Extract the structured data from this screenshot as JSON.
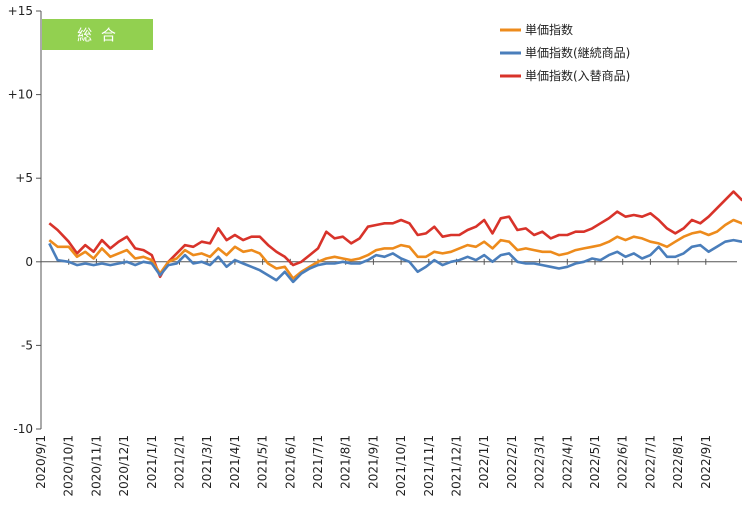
{
  "badge": {
    "label": "総 合"
  },
  "chart_data": {
    "type": "line",
    "title": "",
    "xlabel": "",
    "ylabel": "",
    "ylim": [
      -10,
      15
    ],
    "y_ticks": [
      {
        "value": 15,
        "label": "+15"
      },
      {
        "value": 10,
        "label": "+10"
      },
      {
        "value": 5,
        "label": "+5"
      },
      {
        "value": 0,
        "label": "0"
      },
      {
        "value": -5,
        "label": "-5"
      },
      {
        "value": -10,
        "label": "-10"
      }
    ],
    "x_tick_labels": [
      "2020/9/1",
      "2020/10/1",
      "2020/11/1",
      "2020/12/1",
      "2021/1/1",
      "2021/2/1",
      "2021/3/1",
      "2021/4/1",
      "2021/5/1",
      "2021/6/1",
      "2021/7/1",
      "2021/8/1",
      "2021/9/1",
      "2021/10/1",
      "2021/11/1",
      "2021/12/1",
      "2022/1/1",
      "2022/2/1",
      "2022/3/1",
      "2022/4/1",
      "2022/5/1",
      "2022/6/1",
      "2022/7/1",
      "2022/8/1",
      "2022/9/1"
    ],
    "grid": false,
    "legend_position": "top-right",
    "series": [
      {
        "name": "単価指数",
        "color": "#ed8b1c",
        "points": [
          [
            0.3,
            1.3
          ],
          [
            0.6,
            0.9
          ],
          [
            1.0,
            0.9
          ],
          [
            1.3,
            0.3
          ],
          [
            1.6,
            0.6
          ],
          [
            1.9,
            0.2
          ],
          [
            2.2,
            0.8
          ],
          [
            2.5,
            0.3
          ],
          [
            2.8,
            0.5
          ],
          [
            3.1,
            0.7
          ],
          [
            3.4,
            0.2
          ],
          [
            3.7,
            0.3
          ],
          [
            4.0,
            0.1
          ],
          [
            4.3,
            -0.7
          ],
          [
            4.6,
            0.0
          ],
          [
            4.9,
            0.2
          ],
          [
            5.2,
            0.7
          ],
          [
            5.5,
            0.4
          ],
          [
            5.8,
            0.5
          ],
          [
            6.1,
            0.3
          ],
          [
            6.4,
            0.8
          ],
          [
            6.7,
            0.4
          ],
          [
            7.0,
            0.9
          ],
          [
            7.3,
            0.6
          ],
          [
            7.6,
            0.7
          ],
          [
            7.9,
            0.5
          ],
          [
            8.2,
            -0.1
          ],
          [
            8.5,
            -0.4
          ],
          [
            8.8,
            -0.3
          ],
          [
            9.1,
            -1.0
          ],
          [
            9.4,
            -0.6
          ],
          [
            9.7,
            -0.3
          ],
          [
            10.0,
            0.0
          ],
          [
            10.3,
            0.2
          ],
          [
            10.6,
            0.3
          ],
          [
            10.9,
            0.2
          ],
          [
            11.2,
            0.1
          ],
          [
            11.5,
            0.2
          ],
          [
            11.8,
            0.4
          ],
          [
            12.1,
            0.7
          ],
          [
            12.4,
            0.8
          ],
          [
            12.7,
            0.8
          ],
          [
            13.0,
            1.0
          ],
          [
            13.3,
            0.9
          ],
          [
            13.6,
            0.3
          ],
          [
            13.9,
            0.3
          ],
          [
            14.2,
            0.6
          ],
          [
            14.5,
            0.5
          ],
          [
            14.8,
            0.6
          ],
          [
            15.1,
            0.8
          ],
          [
            15.4,
            1.0
          ],
          [
            15.7,
            0.9
          ],
          [
            16.0,
            1.2
          ],
          [
            16.3,
            0.8
          ],
          [
            16.6,
            1.3
          ],
          [
            16.9,
            1.2
          ],
          [
            17.2,
            0.7
          ],
          [
            17.5,
            0.8
          ],
          [
            17.8,
            0.7
          ],
          [
            18.1,
            0.6
          ],
          [
            18.4,
            0.6
          ],
          [
            18.7,
            0.4
          ],
          [
            19.0,
            0.5
          ],
          [
            19.3,
            0.7
          ],
          [
            19.6,
            0.8
          ],
          [
            19.9,
            0.9
          ],
          [
            20.2,
            1.0
          ],
          [
            20.5,
            1.2
          ],
          [
            20.8,
            1.5
          ],
          [
            21.1,
            1.3
          ],
          [
            21.4,
            1.5
          ],
          [
            21.7,
            1.4
          ],
          [
            22.0,
            1.2
          ],
          [
            22.3,
            1.1
          ],
          [
            22.6,
            0.9
          ],
          [
            22.9,
            1.2
          ],
          [
            23.2,
            1.5
          ],
          [
            23.5,
            1.7
          ],
          [
            23.8,
            1.8
          ],
          [
            24.1,
            1.6
          ],
          [
            24.4,
            1.8
          ],
          [
            24.7,
            2.2
          ],
          [
            25.0,
            2.5
          ],
          [
            25.3,
            2.3
          ],
          [
            25.6,
            2.2
          ],
          [
            25.9,
            2.3
          ]
        ]
      },
      {
        "name": "単価指数(継続商品)",
        "color": "#4a7ebb",
        "points": [
          [
            0.3,
            1.1
          ],
          [
            0.6,
            0.1
          ],
          [
            1.0,
            0.0
          ],
          [
            1.3,
            -0.2
          ],
          [
            1.6,
            -0.1
          ],
          [
            1.9,
            -0.2
          ],
          [
            2.2,
            -0.1
          ],
          [
            2.5,
            -0.2
          ],
          [
            2.8,
            -0.1
          ],
          [
            3.1,
            0.0
          ],
          [
            3.4,
            -0.2
          ],
          [
            3.7,
            0.0
          ],
          [
            4.0,
            -0.1
          ],
          [
            4.3,
            -0.8
          ],
          [
            4.6,
            -0.2
          ],
          [
            4.9,
            -0.1
          ],
          [
            5.2,
            0.4
          ],
          [
            5.5,
            -0.1
          ],
          [
            5.8,
            0.0
          ],
          [
            6.1,
            -0.2
          ],
          [
            6.4,
            0.3
          ],
          [
            6.7,
            -0.3
          ],
          [
            7.0,
            0.1
          ],
          [
            7.3,
            -0.1
          ],
          [
            7.6,
            -0.3
          ],
          [
            7.9,
            -0.5
          ],
          [
            8.2,
            -0.8
          ],
          [
            8.5,
            -1.1
          ],
          [
            8.8,
            -0.6
          ],
          [
            9.1,
            -1.2
          ],
          [
            9.4,
            -0.7
          ],
          [
            9.7,
            -0.4
          ],
          [
            10.0,
            -0.2
          ],
          [
            10.3,
            -0.1
          ],
          [
            10.6,
            -0.1
          ],
          [
            10.9,
            0.0
          ],
          [
            11.2,
            -0.1
          ],
          [
            11.5,
            -0.1
          ],
          [
            11.8,
            0.1
          ],
          [
            12.1,
            0.4
          ],
          [
            12.4,
            0.3
          ],
          [
            12.7,
            0.5
          ],
          [
            13.0,
            0.2
          ],
          [
            13.3,
            0.0
          ],
          [
            13.6,
            -0.6
          ],
          [
            13.9,
            -0.3
          ],
          [
            14.2,
            0.1
          ],
          [
            14.5,
            -0.2
          ],
          [
            14.8,
            0.0
          ],
          [
            15.1,
            0.1
          ],
          [
            15.4,
            0.3
          ],
          [
            15.7,
            0.1
          ],
          [
            16.0,
            0.4
          ],
          [
            16.3,
            0.0
          ],
          [
            16.6,
            0.4
          ],
          [
            16.9,
            0.5
          ],
          [
            17.2,
            0.0
          ],
          [
            17.5,
            -0.1
          ],
          [
            17.8,
            -0.1
          ],
          [
            18.1,
            -0.2
          ],
          [
            18.4,
            -0.3
          ],
          [
            18.7,
            -0.4
          ],
          [
            19.0,
            -0.3
          ],
          [
            19.3,
            -0.1
          ],
          [
            19.6,
            0.0
          ],
          [
            19.9,
            0.2
          ],
          [
            20.2,
            0.1
          ],
          [
            20.5,
            0.4
          ],
          [
            20.8,
            0.6
          ],
          [
            21.1,
            0.3
          ],
          [
            21.4,
            0.5
          ],
          [
            21.7,
            0.2
          ],
          [
            22.0,
            0.4
          ],
          [
            22.3,
            0.9
          ],
          [
            22.6,
            0.3
          ],
          [
            22.9,
            0.3
          ],
          [
            23.2,
            0.5
          ],
          [
            23.5,
            0.9
          ],
          [
            23.8,
            1.0
          ],
          [
            24.1,
            0.6
          ],
          [
            24.4,
            0.9
          ],
          [
            24.7,
            1.2
          ],
          [
            25.0,
            1.3
          ],
          [
            25.3,
            1.2
          ],
          [
            25.6,
            1.2
          ],
          [
            25.9,
            1.2
          ]
        ]
      },
      {
        "name": "単価指数(入替商品)",
        "color": "#d8332a",
        "points": [
          [
            0.3,
            2.3
          ],
          [
            0.6,
            1.9
          ],
          [
            1.0,
            1.2
          ],
          [
            1.3,
            0.5
          ],
          [
            1.6,
            1.0
          ],
          [
            1.9,
            0.6
          ],
          [
            2.2,
            1.3
          ],
          [
            2.5,
            0.8
          ],
          [
            2.8,
            1.2
          ],
          [
            3.1,
            1.5
          ],
          [
            3.4,
            0.8
          ],
          [
            3.7,
            0.7
          ],
          [
            4.0,
            0.4
          ],
          [
            4.3,
            -0.9
          ],
          [
            4.6,
            0.0
          ],
          [
            4.9,
            0.5
          ],
          [
            5.2,
            1.0
          ],
          [
            5.5,
            0.9
          ],
          [
            5.8,
            1.2
          ],
          [
            6.1,
            1.1
          ],
          [
            6.4,
            2.0
          ],
          [
            6.7,
            1.3
          ],
          [
            7.0,
            1.6
          ],
          [
            7.3,
            1.3
          ],
          [
            7.6,
            1.5
          ],
          [
            7.9,
            1.5
          ],
          [
            8.2,
            1.0
          ],
          [
            8.5,
            0.6
          ],
          [
            8.8,
            0.3
          ],
          [
            9.1,
            -0.2
          ],
          [
            9.4,
            0.0
          ],
          [
            9.7,
            0.4
          ],
          [
            10.0,
            0.8
          ],
          [
            10.3,
            1.8
          ],
          [
            10.6,
            1.4
          ],
          [
            10.9,
            1.5
          ],
          [
            11.2,
            1.1
          ],
          [
            11.5,
            1.4
          ],
          [
            11.8,
            2.1
          ],
          [
            12.1,
            2.2
          ],
          [
            12.4,
            2.3
          ],
          [
            12.7,
            2.3
          ],
          [
            13.0,
            2.5
          ],
          [
            13.3,
            2.3
          ],
          [
            13.6,
            1.6
          ],
          [
            13.9,
            1.7
          ],
          [
            14.2,
            2.1
          ],
          [
            14.5,
            1.5
          ],
          [
            14.8,
            1.6
          ],
          [
            15.1,
            1.6
          ],
          [
            15.4,
            1.9
          ],
          [
            15.7,
            2.1
          ],
          [
            16.0,
            2.5
          ],
          [
            16.3,
            1.7
          ],
          [
            16.6,
            2.6
          ],
          [
            16.9,
            2.7
          ],
          [
            17.2,
            1.9
          ],
          [
            17.5,
            2.0
          ],
          [
            17.8,
            1.6
          ],
          [
            18.1,
            1.8
          ],
          [
            18.4,
            1.4
          ],
          [
            18.7,
            1.6
          ],
          [
            19.0,
            1.6
          ],
          [
            19.3,
            1.8
          ],
          [
            19.6,
            1.8
          ],
          [
            19.9,
            2.0
          ],
          [
            20.2,
            2.3
          ],
          [
            20.5,
            2.6
          ],
          [
            20.8,
            3.0
          ],
          [
            21.1,
            2.7
          ],
          [
            21.4,
            2.8
          ],
          [
            21.7,
            2.7
          ],
          [
            22.0,
            2.9
          ],
          [
            22.3,
            2.5
          ],
          [
            22.6,
            2.0
          ],
          [
            22.9,
            1.7
          ],
          [
            23.2,
            2.0
          ],
          [
            23.5,
            2.5
          ],
          [
            23.8,
            2.3
          ],
          [
            24.1,
            2.7
          ],
          [
            24.4,
            3.2
          ],
          [
            24.7,
            3.7
          ],
          [
            25.0,
            4.2
          ],
          [
            25.3,
            3.7
          ],
          [
            25.6,
            3.5
          ],
          [
            25.9,
            3.8
          ]
        ]
      }
    ]
  }
}
